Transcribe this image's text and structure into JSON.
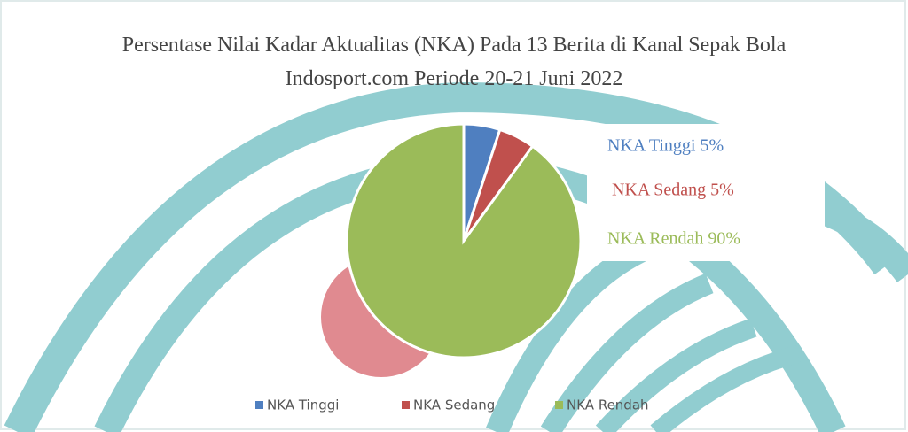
{
  "chart_data": {
    "type": "pie",
    "title": "Persentase Nilai Kadar Aktualitas (NKA) Pada 13 Berita di Kanal Sepak Bola Indosport.com Periode 20-21 Juni 2022",
    "categories": [
      "NKA Tinggi",
      "NKA Sedang",
      "NKA Rendah"
    ],
    "values": [
      5,
      5,
      90
    ],
    "value_labels": [
      "NKA Tinggi 5%",
      "NKA Sedang 5%",
      "NKA Rendah 90%"
    ],
    "colors": [
      "#4f7fc0",
      "#c0504d",
      "#9bbb59"
    ],
    "legend": "bottom"
  }
}
